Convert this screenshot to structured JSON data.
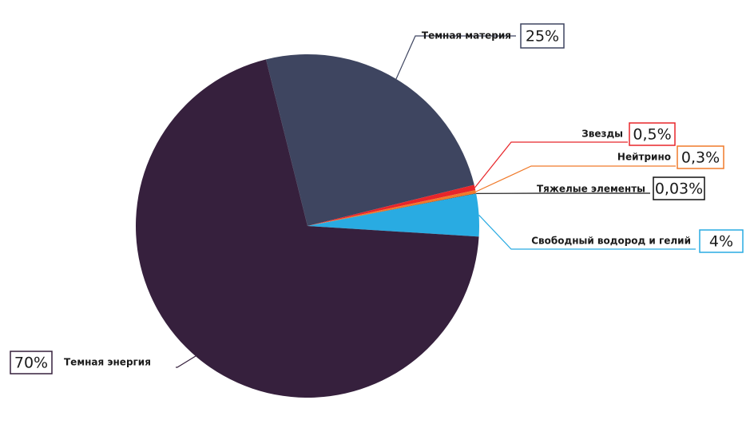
{
  "chart_data": {
    "type": "pie",
    "categories": [
      "Темная материя",
      "Звезды",
      "Нейтрино",
      "Тяжелые элементы",
      "Свободный водород и гелий",
      "Темная энергия"
    ],
    "values": [
      25,
      0.5,
      0.3,
      0.03,
      4,
      70
    ],
    "value_labels": [
      "25%",
      "0,5%",
      "0,3%",
      "0,03%",
      "4%",
      "70%"
    ],
    "colors": [
      "#3e4560",
      "#e8262a",
      "#f07a2a",
      "#111111",
      "#29abe2",
      "#36203d"
    ]
  }
}
